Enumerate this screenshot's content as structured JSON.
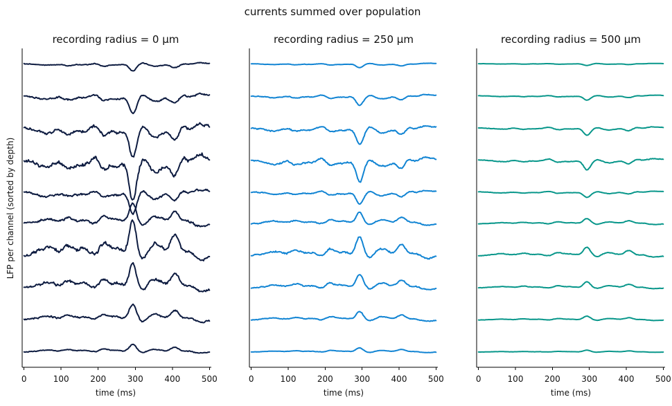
{
  "figure": {
    "suptitle": "currents summed over population",
    "ylabel": "LFP per channel (sorted by depth)"
  },
  "chart_data": [
    {
      "type": "line",
      "title": "recording radius = 0 µm",
      "xlabel": "time (ms)",
      "ylabel": "LFP per channel (sorted by depth)",
      "xlim": [
        -5,
        505
      ],
      "xticks": [
        0,
        100,
        200,
        300,
        400,
        500
      ],
      "color": "#0d1b40",
      "amplitude": 1.0,
      "n_channels": 10,
      "grid": false,
      "legend": "none"
    },
    {
      "type": "line",
      "title": "recording radius = 250 µm",
      "xlabel": "time (ms)",
      "xlim": [
        -5,
        505
      ],
      "xticks": [
        0,
        100,
        200,
        300,
        400,
        500
      ],
      "color": "#1184d3",
      "amplitude": 0.55,
      "n_channels": 10,
      "grid": false,
      "legend": "none"
    },
    {
      "type": "line",
      "title": "recording radius = 500 µm",
      "xlabel": "time (ms)",
      "xlim": [
        -5,
        505
      ],
      "xticks": [
        0,
        100,
        200,
        300,
        400,
        500
      ],
      "color": "#07968a",
      "amplitude": 0.25,
      "n_channels": 10,
      "grid": false,
      "legend": "none"
    }
  ]
}
